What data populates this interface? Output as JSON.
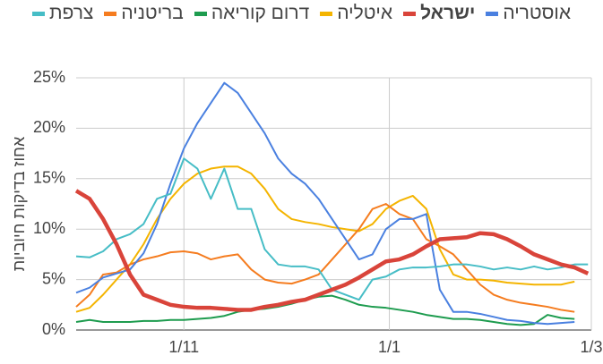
{
  "chart_data": {
    "type": "line",
    "y_label": "אחוז בדיקות חיוביות",
    "x": [
      -32,
      -28,
      -24,
      -20,
      -16,
      -12,
      -8,
      -4,
      0,
      4,
      8,
      12,
      16,
      20,
      24,
      28,
      32,
      36,
      40,
      44,
      48,
      52,
      56,
      60,
      64,
      68,
      72,
      76,
      80,
      84,
      88,
      92,
      96,
      100,
      104,
      108,
      112,
      116,
      120
    ],
    "xlim": [
      -32,
      121
    ],
    "xticks": [
      {
        "value": 0,
        "label": "1/11"
      },
      {
        "value": 61,
        "label": "1/1"
      },
      {
        "value": 121,
        "label": "1/3"
      }
    ],
    "ylim": [
      0,
      25
    ],
    "yticks": [
      {
        "value": 0,
        "label": "0%"
      },
      {
        "value": 5,
        "label": "5%"
      },
      {
        "value": 10,
        "label": "10%"
      },
      {
        "value": 15,
        "label": "15%"
      },
      {
        "value": 20,
        "label": "20%"
      },
      {
        "value": 25,
        "label": "25%"
      }
    ],
    "grid": true,
    "legend": "top",
    "series": [
      {
        "name": "אוסטריה",
        "color": "#4a80e0",
        "values": [
          3.7,
          4.2,
          5.2,
          5.6,
          6.0,
          7.6,
          10.5,
          14.5,
          18,
          20.5,
          22.5,
          24.5,
          23.5,
          21.5,
          19.5,
          17,
          15.5,
          14.5,
          13,
          11,
          9,
          7,
          7.5,
          10,
          11,
          11,
          11.5,
          4,
          1.8,
          1.8,
          1.6,
          1.3,
          1,
          0.9,
          0.7,
          0.6,
          0.7,
          0.8,
          null
        ]
      },
      {
        "name": "ישראל",
        "color": "#d9443a",
        "values": [
          13.8,
          13,
          11,
          8.5,
          5.5,
          3.5,
          3,
          2.5,
          2.3,
          2.2,
          2.2,
          2.1,
          2,
          2,
          2.3,
          2.5,
          2.8,
          3,
          3.5,
          4,
          4.5,
          5.2,
          6,
          6.8,
          7,
          7.5,
          8.3,
          9,
          9.1,
          9.2,
          9.6,
          9.5,
          9,
          8.3,
          7.5,
          7,
          6.5,
          6.2,
          5.6
        ]
      },
      {
        "name": "איטליה",
        "color": "#f4b400",
        "values": [
          1.8,
          2.2,
          3.5,
          5,
          6.5,
          8.5,
          11,
          13,
          14.5,
          15.5,
          16,
          16.2,
          16.2,
          15.5,
          14,
          12,
          11,
          10.7,
          10.5,
          10.2,
          10,
          9.8,
          10.5,
          12,
          12.8,
          13.3,
          12,
          8,
          5.5,
          5,
          5,
          4.9,
          4.7,
          4.6,
          4.5,
          4.5,
          4.5,
          4.8,
          null
        ]
      },
      {
        "name": "דרום קוריאה",
        "color": "#1e9c4f",
        "values": [
          0.8,
          1,
          0.8,
          0.8,
          0.8,
          0.9,
          0.9,
          1,
          1,
          1.1,
          1.2,
          1.4,
          1.8,
          2,
          2.1,
          2.3,
          2.6,
          3,
          3.3,
          3.4,
          3,
          2.5,
          2.3,
          2.2,
          2,
          1.8,
          1.5,
          1.3,
          1.1,
          1.1,
          1,
          0.8,
          0.6,
          0.5,
          0.6,
          1.5,
          1.2,
          1.1,
          null
        ]
      },
      {
        "name": "בריטניה",
        "color": "#f57c1f",
        "values": [
          2.3,
          3.5,
          5.5,
          5.7,
          6.5,
          7,
          7.3,
          7.7,
          7.8,
          7.6,
          7,
          7.3,
          7.5,
          6,
          5,
          4.7,
          4.6,
          5,
          5.5,
          7,
          8.5,
          10,
          12,
          12.5,
          11.5,
          11,
          9,
          8.3,
          7.5,
          6,
          4.5,
          3.5,
          3,
          2.7,
          2.5,
          2.3,
          2,
          1.8,
          null
        ]
      },
      {
        "name": "צרפת",
        "color": "#46bdc6",
        "values": [
          7.3,
          7.2,
          7.8,
          9,
          9.5,
          10.5,
          13,
          13.5,
          17,
          16,
          13,
          16,
          12,
          12,
          8,
          6.5,
          6.3,
          6.3,
          6,
          4,
          3.5,
          3,
          5,
          5.3,
          6,
          6.2,
          6.2,
          6.3,
          6.5,
          6.5,
          6.3,
          6,
          6.2,
          6,
          6.3,
          6,
          6.2,
          6.5,
          6.5
        ]
      }
    ]
  }
}
